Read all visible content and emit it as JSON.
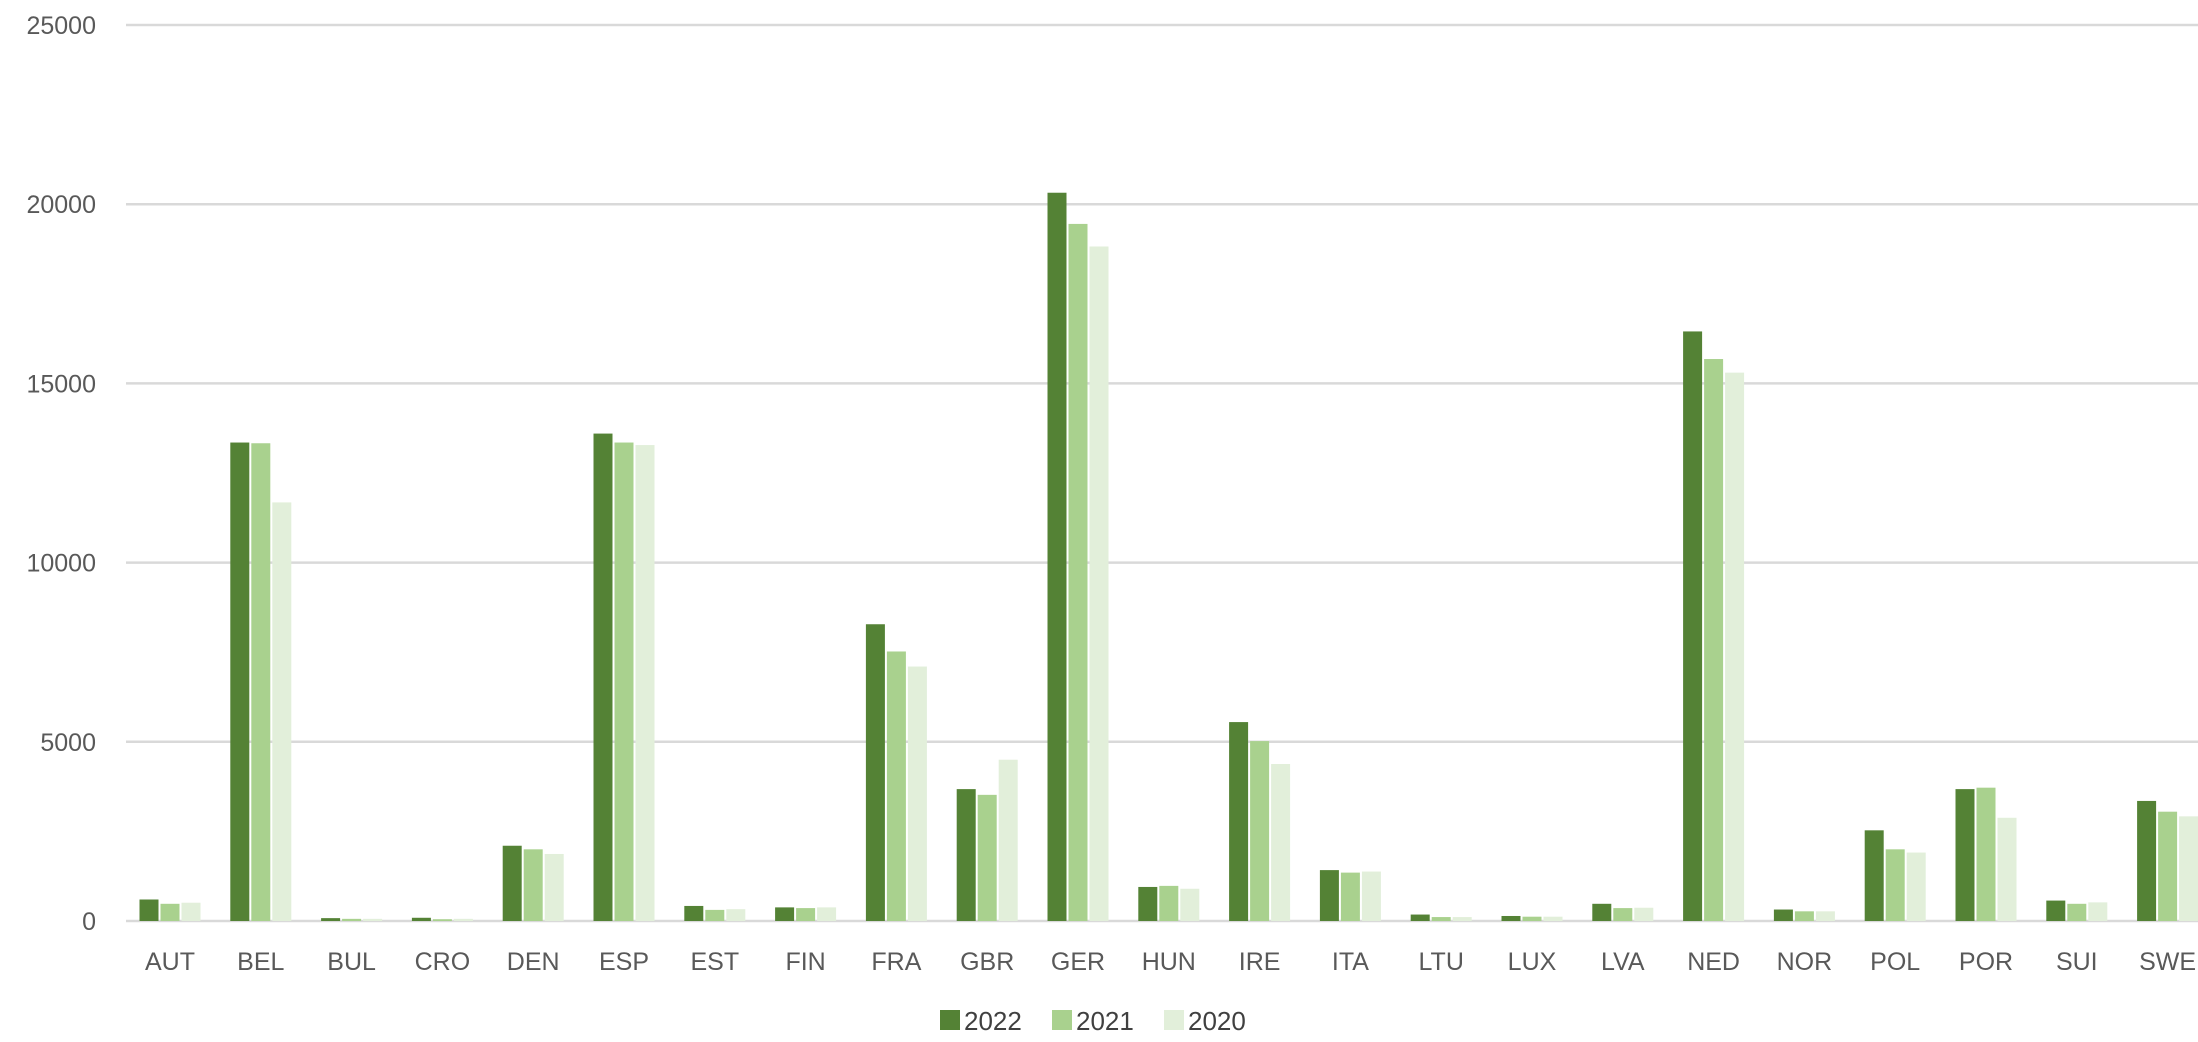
{
  "chart_data": {
    "type": "bar",
    "categories": [
      "AUT",
      "BEL",
      "BUL",
      "CRO",
      "DEN",
      "ESP",
      "EST",
      "FIN",
      "FRA",
      "GBR",
      "GER",
      "HUN",
      "IRE",
      "ITA",
      "LTU",
      "LUX",
      "LVA",
      "NED",
      "NOR",
      "POL",
      "POR",
      "SUI",
      "SWE"
    ],
    "series": [
      {
        "name": "2022",
        "color": "#548235",
        "values": [
          600,
          13350,
          80,
          90,
          2100,
          13600,
          420,
          380,
          8280,
          3680,
          20320,
          950,
          5550,
          1420,
          180,
          140,
          480,
          16450,
          320,
          2530,
          3680,
          570,
          3350
        ]
      },
      {
        "name": "2021",
        "color": "#a9d18e",
        "values": [
          480,
          13330,
          60,
          50,
          2000,
          13350,
          310,
          360,
          7520,
          3520,
          19450,
          980,
          5020,
          1350,
          110,
          120,
          360,
          15680,
          270,
          2000,
          3720,
          480,
          3050
        ]
      },
      {
        "name": "2020",
        "color": "#e2efda",
        "values": [
          510,
          11680,
          60,
          60,
          1870,
          13280,
          330,
          380,
          7100,
          4500,
          18820,
          900,
          4380,
          1380,
          110,
          120,
          370,
          15300,
          270,
          1910,
          2880,
          520,
          2920
        ]
      }
    ],
    "y_ticks": [
      "0",
      "5000",
      "10000",
      "15000",
      "20000",
      "25000"
    ],
    "ylim": [
      0,
      25000
    ],
    "grid": true,
    "legend_position": "bottom"
  }
}
